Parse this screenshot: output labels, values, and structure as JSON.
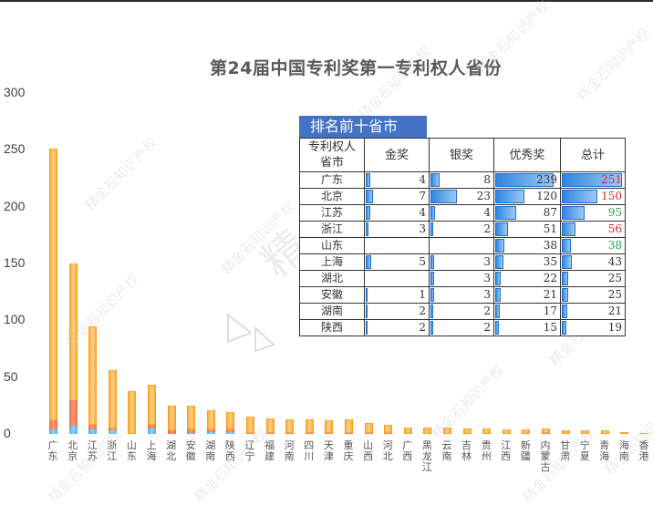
{
  "title": "第24届中国专利奖第一专利权人省份",
  "table": {
    "title": "排名前十省市",
    "headers": [
      "专利权人省市",
      "金奖",
      "银奖",
      "优秀奖",
      "总计"
    ],
    "rows": [
      {
        "province": "广东",
        "gold": "4",
        "silver": "8",
        "excellent": "239",
        "total": "251",
        "total_color": "red"
      },
      {
        "province": "北京",
        "gold": "7",
        "silver": "23",
        "excellent": "120",
        "total": "150",
        "total_color": "red"
      },
      {
        "province": "江苏",
        "gold": "4",
        "silver": "4",
        "excellent": "87",
        "total": "95",
        "total_color": "green"
      },
      {
        "province": "浙江",
        "gold": "3",
        "silver": "2",
        "excellent": "51",
        "total": "56",
        "total_color": "red"
      },
      {
        "province": "山东",
        "gold": "",
        "silver": "",
        "excellent": "38",
        "total": "38",
        "total_color": "green"
      },
      {
        "province": "上海",
        "gold": "5",
        "silver": "3",
        "excellent": "35",
        "total": "43",
        "total_color": ""
      },
      {
        "province": "湖北",
        "gold": "",
        "silver": "3",
        "excellent": "22",
        "total": "25",
        "total_color": ""
      },
      {
        "province": "安徽",
        "gold": "1",
        "silver": "3",
        "excellent": "21",
        "total": "25",
        "total_color": ""
      },
      {
        "province": "湖南",
        "gold": "2",
        "silver": "2",
        "excellent": "17",
        "total": "21",
        "total_color": ""
      },
      {
        "province": "陕西",
        "gold": "2",
        "silver": "2",
        "excellent": "15",
        "total": "19",
        "total_color": ""
      }
    ]
  },
  "watermark": "精金石知识产权",
  "colors": {
    "gold": "#5ab4e8",
    "silver": "#f26b43",
    "excellent": "#fda31a",
    "table_header": "#4472c4"
  },
  "chart_data": {
    "type": "bar",
    "stacked": true,
    "title": "第24届中国专利奖第一专利权人省份",
    "xlabel": "",
    "ylabel": "",
    "ylim": [
      0,
      300
    ],
    "yticks": [
      0,
      50,
      100,
      150,
      200,
      250,
      300
    ],
    "grid": false,
    "categories": [
      "广东",
      "北京",
      "江苏",
      "浙江",
      "山东",
      "上海",
      "湖北",
      "安徽",
      "湖南",
      "陕西",
      "辽宁",
      "福建",
      "河南",
      "四川",
      "天津",
      "重庆",
      "山西",
      "河北",
      "广西",
      "黑龙江",
      "云南",
      "吉林",
      "贵州",
      "江西",
      "新疆",
      "内蒙古",
      "甘肃",
      "宁夏",
      "青海",
      "海南",
      "香港"
    ],
    "series": [
      {
        "name": "金奖",
        "values": [
          4,
          7,
          4,
          3,
          0,
          5,
          0,
          1,
          2,
          2,
          0,
          0,
          0,
          0,
          0,
          0,
          0,
          0,
          0,
          0,
          0,
          0,
          0,
          0,
          0,
          0,
          0,
          0,
          0,
          0,
          0
        ]
      },
      {
        "name": "银奖",
        "values": [
          8,
          23,
          4,
          2,
          0,
          3,
          3,
          3,
          2,
          2,
          1,
          1,
          1,
          1,
          1,
          1,
          1,
          1,
          0,
          0,
          0,
          0,
          0,
          0,
          0,
          1,
          0,
          0,
          0,
          0,
          0
        ]
      },
      {
        "name": "优秀奖",
        "values": [
          239,
          120,
          87,
          51,
          38,
          35,
          22,
          21,
          17,
          15,
          14,
          13,
          12,
          12,
          11,
          12,
          9,
          7,
          6,
          6,
          6,
          5,
          5,
          4,
          4,
          4,
          3,
          3,
          3,
          2,
          1
        ]
      }
    ],
    "totals": [
      251,
      150,
      95,
      56,
      38,
      43,
      25,
      25,
      21,
      19,
      15,
      14,
      13,
      13,
      12,
      13,
      10,
      8,
      6,
      6,
      6,
      5,
      5,
      4,
      4,
      5,
      3,
      3,
      3,
      2,
      1
    ]
  }
}
